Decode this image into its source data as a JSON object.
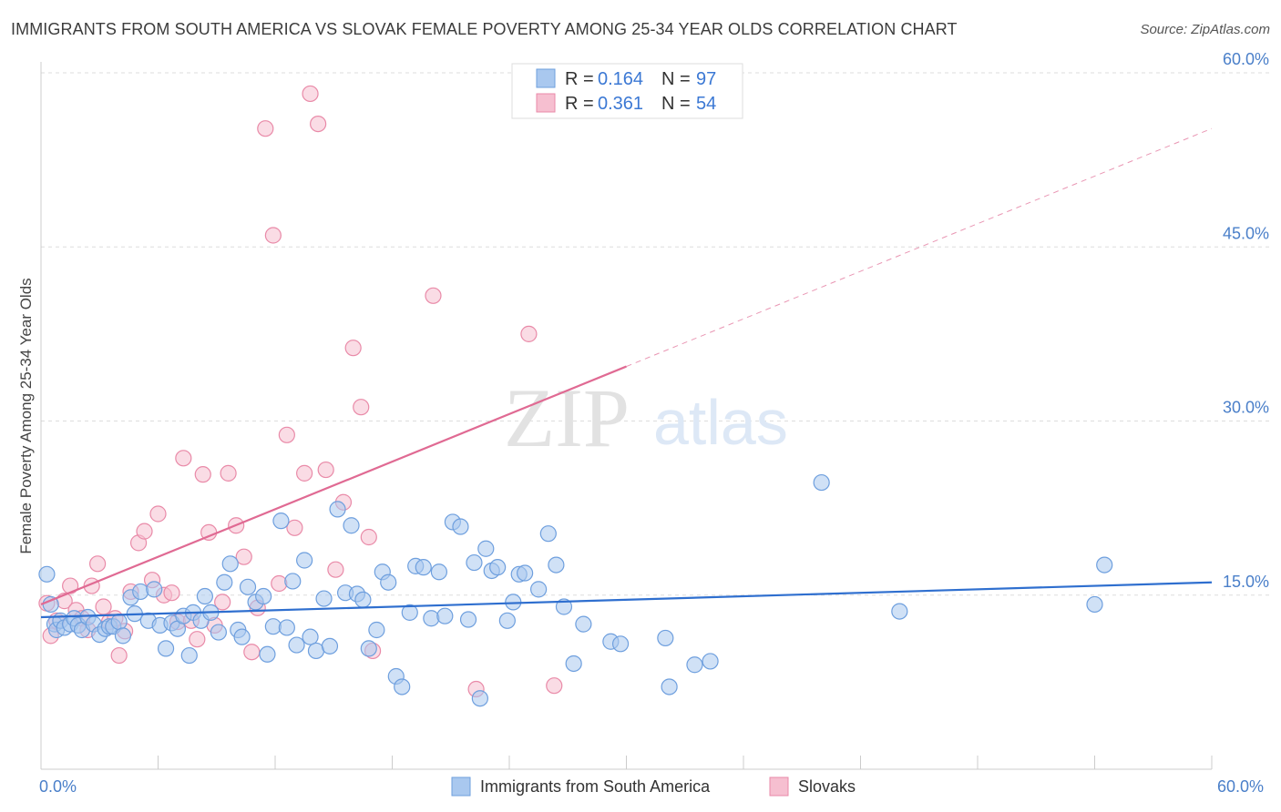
{
  "title": "IMMIGRANTS FROM SOUTH AMERICA VS SLOVAK FEMALE POVERTY AMONG 25-34 YEAR OLDS CORRELATION CHART",
  "source": "Source: ZipAtlas.com",
  "watermark": {
    "zip": "ZIP",
    "atlas": "atlas"
  },
  "colors": {
    "blue_fill": "#a9c8ef",
    "blue_stroke": "#6e9fde",
    "blue_line": "#2f6fcf",
    "pink_fill": "#f6bfd0",
    "pink_stroke": "#e98aa8",
    "pink_line": "#e06a93",
    "grid": "#dddddd",
    "tick_label": "#4a7fc9"
  },
  "legend": {
    "blue": {
      "r_label": "R =",
      "r_value": "0.164",
      "n_label": "N =",
      "n_value": "97"
    },
    "pink": {
      "r_label": "R =",
      "r_value": "0.361",
      "n_label": "N =",
      "n_value": "54"
    }
  },
  "bottom_legend": {
    "blue_label": "Immigrants from South America",
    "pink_label": "Slovaks"
  },
  "chart_data": {
    "type": "scatter",
    "xlabel": "",
    "ylabel": "Female Poverty Among 25-34 Year Olds",
    "xlim": [
      0,
      60
    ],
    "ylim": [
      0,
      60
    ],
    "x_tick_labels": [
      "0.0%",
      "60.0%"
    ],
    "y_ticks": [
      15,
      30,
      45,
      60
    ],
    "y_tick_labels": [
      "15.0%",
      "30.0%",
      "45.0%",
      "60.0%"
    ],
    "grid": true,
    "legend_position": "top-center",
    "series": [
      {
        "name": "Immigrants from South America",
        "r": 0.164,
        "n": 97,
        "trend": {
          "x": [
            0,
            60
          ],
          "y": [
            13.1,
            16.1
          ],
          "dashed_beyond": null
        },
        "points": [
          [
            0.3,
            16.8
          ],
          [
            0.5,
            14.2
          ],
          [
            0.7,
            12.5
          ],
          [
            0.8,
            12.0
          ],
          [
            1.0,
            12.8
          ],
          [
            1.2,
            12.2
          ],
          [
            1.5,
            12.5
          ],
          [
            1.7,
            13.0
          ],
          [
            1.9,
            12.4
          ],
          [
            2.1,
            12.0
          ],
          [
            2.4,
            13.1
          ],
          [
            2.7,
            12.5
          ],
          [
            3.0,
            11.6
          ],
          [
            3.3,
            12.1
          ],
          [
            3.5,
            12.3
          ],
          [
            3.7,
            12.3
          ],
          [
            4.0,
            12.7
          ],
          [
            4.2,
            11.5
          ],
          [
            4.6,
            14.8
          ],
          [
            4.8,
            13.4
          ],
          [
            5.1,
            15.3
          ],
          [
            5.5,
            12.8
          ],
          [
            5.8,
            15.5
          ],
          [
            6.1,
            12.4
          ],
          [
            6.4,
            10.4
          ],
          [
            6.7,
            12.6
          ],
          [
            7.0,
            12.1
          ],
          [
            7.3,
            13.2
          ],
          [
            7.6,
            9.8
          ],
          [
            7.8,
            13.5
          ],
          [
            8.2,
            12.8
          ],
          [
            8.4,
            14.9
          ],
          [
            8.7,
            13.5
          ],
          [
            9.1,
            11.8
          ],
          [
            9.4,
            16.1
          ],
          [
            9.7,
            17.7
          ],
          [
            10.1,
            12.0
          ],
          [
            10.3,
            11.4
          ],
          [
            10.6,
            15.7
          ],
          [
            11.0,
            14.4
          ],
          [
            11.4,
            14.9
          ],
          [
            11.6,
            9.9
          ],
          [
            11.9,
            12.3
          ],
          [
            12.3,
            21.4
          ],
          [
            12.6,
            12.2
          ],
          [
            12.9,
            16.2
          ],
          [
            13.1,
            10.7
          ],
          [
            13.5,
            18.0
          ],
          [
            13.8,
            11.4
          ],
          [
            14.1,
            10.2
          ],
          [
            14.5,
            14.7
          ],
          [
            14.8,
            10.6
          ],
          [
            15.2,
            22.4
          ],
          [
            15.6,
            15.2
          ],
          [
            15.9,
            21.0
          ],
          [
            16.2,
            15.1
          ],
          [
            16.5,
            14.6
          ],
          [
            16.8,
            10.4
          ],
          [
            17.2,
            12.0
          ],
          [
            17.5,
            17.0
          ],
          [
            17.8,
            16.1
          ],
          [
            18.2,
            8.0
          ],
          [
            18.5,
            7.1
          ],
          [
            18.9,
            13.5
          ],
          [
            19.2,
            17.5
          ],
          [
            19.6,
            17.4
          ],
          [
            20.0,
            13.0
          ],
          [
            20.4,
            17.0
          ],
          [
            20.7,
            13.2
          ],
          [
            21.1,
            21.3
          ],
          [
            21.5,
            20.9
          ],
          [
            21.9,
            12.9
          ],
          [
            22.2,
            17.8
          ],
          [
            22.5,
            6.1
          ],
          [
            22.8,
            19.0
          ],
          [
            23.1,
            17.1
          ],
          [
            23.4,
            17.4
          ],
          [
            23.9,
            12.8
          ],
          [
            24.2,
            14.4
          ],
          [
            24.5,
            16.8
          ],
          [
            24.8,
            16.9
          ],
          [
            25.5,
            15.5
          ],
          [
            26.0,
            20.3
          ],
          [
            26.4,
            17.6
          ],
          [
            26.8,
            14.0
          ],
          [
            27.3,
            9.1
          ],
          [
            27.8,
            12.5
          ],
          [
            29.2,
            11.0
          ],
          [
            29.7,
            10.8
          ],
          [
            32.0,
            11.3
          ],
          [
            32.2,
            7.1
          ],
          [
            33.5,
            9.0
          ],
          [
            34.3,
            9.3
          ],
          [
            40.0,
            24.7
          ],
          [
            44.0,
            13.6
          ],
          [
            54.0,
            14.2
          ],
          [
            54.5,
            17.6
          ]
        ]
      },
      {
        "name": "Slovaks",
        "r": 0.361,
        "n": 54,
        "trend": {
          "x": [
            0,
            30
          ],
          "y": [
            14.2,
            34.7
          ],
          "dashed_x": [
            30,
            60
          ],
          "dashed_y": [
            34.7,
            55.2
          ]
        },
        "points": [
          [
            0.3,
            14.3
          ],
          [
            0.5,
            11.5
          ],
          [
            0.8,
            12.8
          ],
          [
            1.2,
            14.5
          ],
          [
            1.5,
            15.8
          ],
          [
            1.8,
            13.7
          ],
          [
            2.1,
            13.0
          ],
          [
            2.4,
            12.0
          ],
          [
            2.6,
            15.8
          ],
          [
            2.9,
            17.7
          ],
          [
            3.2,
            14.0
          ],
          [
            3.5,
            12.7
          ],
          [
            3.8,
            13.0
          ],
          [
            4.0,
            9.8
          ],
          [
            4.3,
            11.9
          ],
          [
            4.6,
            15.3
          ],
          [
            5.0,
            19.5
          ],
          [
            5.3,
            20.5
          ],
          [
            5.7,
            16.3
          ],
          [
            6.0,
            22.0
          ],
          [
            6.3,
            15.0
          ],
          [
            6.7,
            15.2
          ],
          [
            7.0,
            12.7
          ],
          [
            7.3,
            26.8
          ],
          [
            7.7,
            12.8
          ],
          [
            8.0,
            11.2
          ],
          [
            8.3,
            25.4
          ],
          [
            8.6,
            20.4
          ],
          [
            8.9,
            12.4
          ],
          [
            9.3,
            14.4
          ],
          [
            9.6,
            25.5
          ],
          [
            10.0,
            21.0
          ],
          [
            10.4,
            18.3
          ],
          [
            10.8,
            10.1
          ],
          [
            11.1,
            13.9
          ],
          [
            11.5,
            55.2
          ],
          [
            11.9,
            46.0
          ],
          [
            12.2,
            16.0
          ],
          [
            12.6,
            28.8
          ],
          [
            13.0,
            20.8
          ],
          [
            13.5,
            25.5
          ],
          [
            13.8,
            58.2
          ],
          [
            14.2,
            55.6
          ],
          [
            14.6,
            25.8
          ],
          [
            15.1,
            17.2
          ],
          [
            15.5,
            23.0
          ],
          [
            16.0,
            36.3
          ],
          [
            16.4,
            31.2
          ],
          [
            16.8,
            20.0
          ],
          [
            17.0,
            10.2
          ],
          [
            20.1,
            40.8
          ],
          [
            22.3,
            6.9
          ],
          [
            25.0,
            37.5
          ],
          [
            26.3,
            7.2
          ]
        ]
      }
    ]
  }
}
